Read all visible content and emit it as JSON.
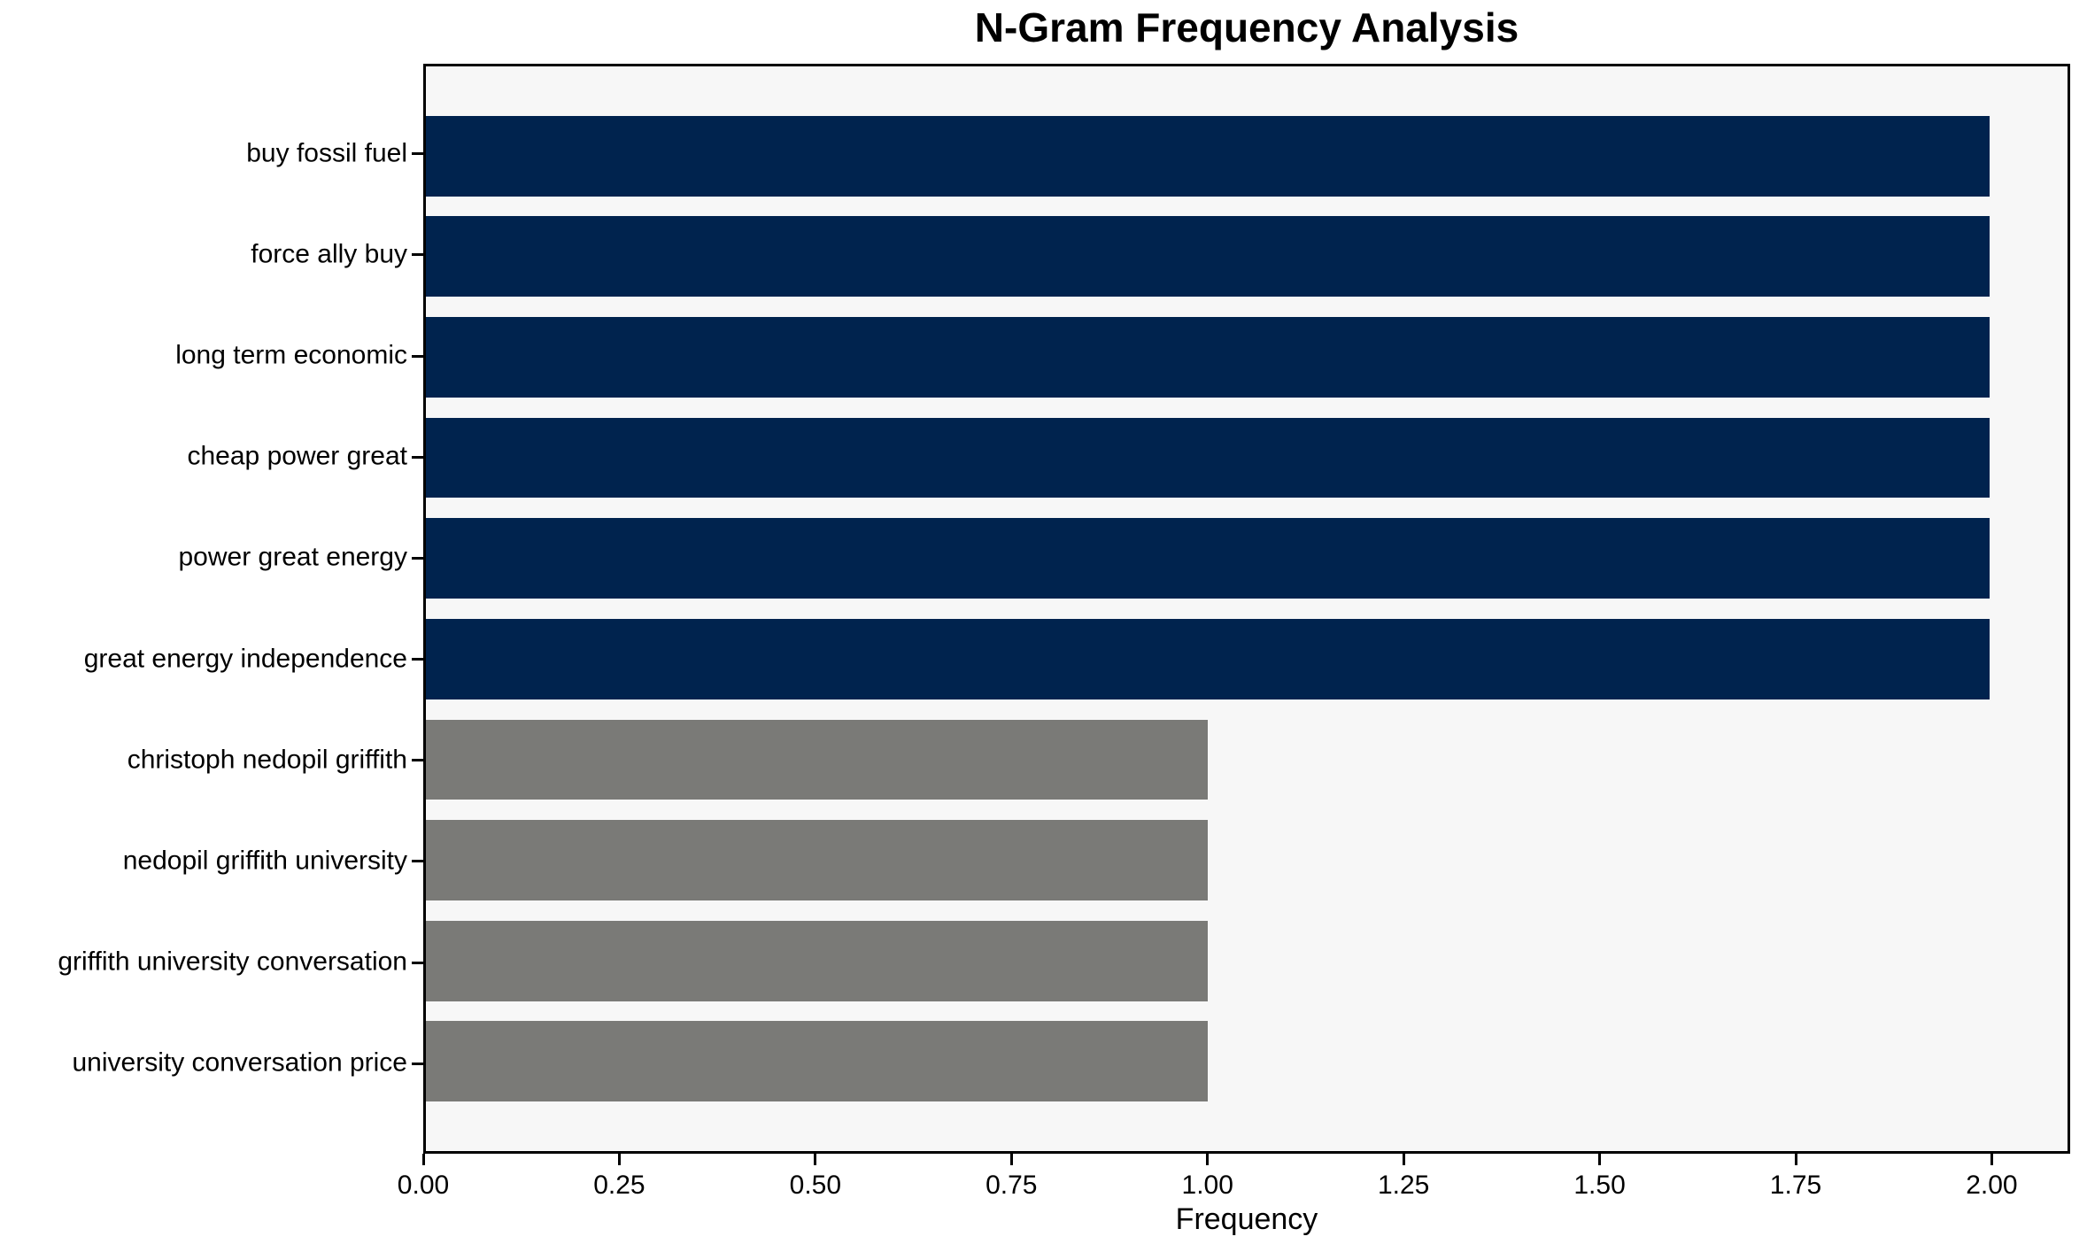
{
  "chart_data": {
    "type": "bar",
    "orientation": "horizontal",
    "title": "N-Gram Frequency Analysis",
    "xlabel": "Frequency",
    "ylabel": "",
    "categories": [
      "buy fossil fuel",
      "force ally buy",
      "long term economic",
      "cheap power great",
      "power great energy",
      "great energy independence",
      "christoph nedopil griffith",
      "nedopil griffith university",
      "griffith university conversation",
      "university conversation price"
    ],
    "values": [
      2,
      2,
      2,
      2,
      2,
      2,
      1,
      1,
      1,
      1
    ],
    "bar_colors": [
      "#00234e",
      "#00234e",
      "#00234e",
      "#00234e",
      "#00234e",
      "#00234e",
      "#7a7a77",
      "#7a7a77",
      "#7a7a77",
      "#7a7a77"
    ],
    "x_ticks": [
      {
        "value": 0.0,
        "label": "0.00"
      },
      {
        "value": 0.25,
        "label": "0.25"
      },
      {
        "value": 0.5,
        "label": "0.50"
      },
      {
        "value": 0.75,
        "label": "0.75"
      },
      {
        "value": 1.0,
        "label": "1.00"
      },
      {
        "value": 1.25,
        "label": "1.25"
      },
      {
        "value": 1.5,
        "label": "1.50"
      },
      {
        "value": 1.75,
        "label": "1.75"
      },
      {
        "value": 2.0,
        "label": "2.00"
      }
    ],
    "xlim": [
      0,
      2.1
    ],
    "grid": false,
    "legend": null,
    "colors": {
      "navy": "#00234e",
      "gray": "#7a7a77",
      "plot_background": "#f7f7f7",
      "figure_background": "#ffffff",
      "axis": "#000000"
    }
  }
}
